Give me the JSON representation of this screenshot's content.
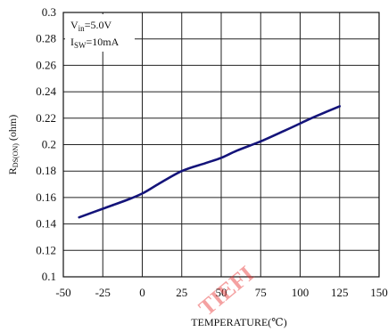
{
  "chart_data": {
    "type": "line",
    "title": "",
    "xlabel": "TEMPERATURE(℃)",
    "ylabel": "RDS(ON) (ohm)",
    "ylabel_main": "R",
    "ylabel_sub": "DS(ON)",
    "ylabel_unit": " (ohm)",
    "xlim": [
      -50,
      150
    ],
    "ylim": [
      0.1,
      0.3
    ],
    "x_ticks": [
      "-50",
      "-25",
      "0",
      "25",
      "50",
      "75",
      "100",
      "125",
      "150"
    ],
    "y_ticks": [
      "0.1",
      "0.12",
      "0.14",
      "0.16",
      "0.18",
      "0.2",
      "0.22",
      "0.24",
      "0.26",
      "0.28",
      "0.3"
    ],
    "grid": true,
    "line_color": "#14147a",
    "annotations": [
      {
        "main": "V",
        "sub": "in",
        "rest": "=5.0V"
      },
      {
        "main": "I",
        "sub": "SW",
        "rest": "=10mA"
      }
    ],
    "series": [
      {
        "x": [
          -40,
          -25,
          -10,
          0,
          10,
          25,
          40,
          50,
          60,
          75,
          90,
          100,
          110,
          125
        ],
        "y": [
          0.145,
          0.1515,
          0.158,
          0.163,
          0.17,
          0.18,
          0.186,
          0.19,
          0.1955,
          0.2025,
          0.2105,
          0.216,
          0.2215,
          0.229
        ]
      }
    ],
    "watermark": "TIEFI"
  }
}
